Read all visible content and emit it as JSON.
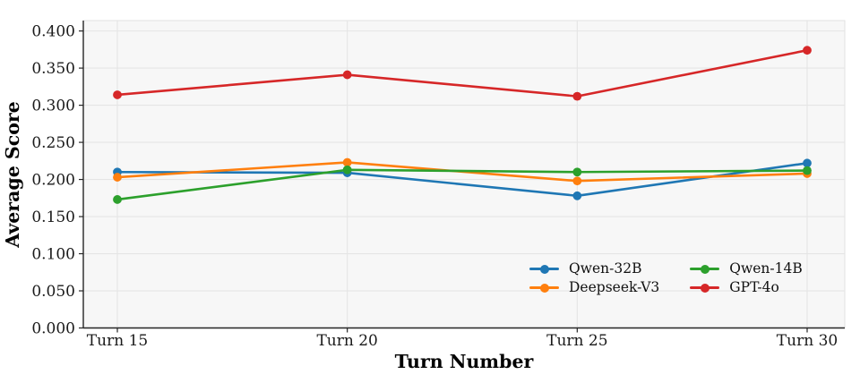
{
  "figure": {
    "background": "#ffffff",
    "plot_background": "#f7f7f7",
    "plot_border_color": "#e2e2e2",
    "grid_color": "#e5e5e5",
    "spine_color": "#262626",
    "tick_color": "#262626",
    "text_color": "#1a1a1a"
  },
  "chart_data": {
    "type": "line",
    "title": "",
    "xlabel": "Turn Number",
    "ylabel": "Average Score",
    "categories": [
      "Turn 15",
      "Turn 20",
      "Turn 25",
      "Turn 30"
    ],
    "ylim": [
      0,
      0.414
    ],
    "ytick_values": [
      0,
      0.05,
      0.1,
      0.15,
      0.2,
      0.25,
      0.3,
      0.35,
      0.4
    ],
    "ytick_labels": [
      "0.000",
      "0.050",
      "0.100",
      "0.150",
      "0.200",
      "0.250",
      "0.300",
      "0.350",
      "0.400"
    ],
    "grid": true,
    "legend": {
      "position": "lower-right-inside",
      "columns": 2,
      "order": "column-major"
    },
    "series": [
      {
        "name": "Qwen-32B",
        "color": "#1f77b4",
        "marker": "circle",
        "values": [
          0.21,
          0.209,
          0.178,
          0.222
        ]
      },
      {
        "name": "Deepseek-V3",
        "color": "#ff7f0e",
        "marker": "circle",
        "values": [
          0.203,
          0.223,
          0.198,
          0.208
        ]
      },
      {
        "name": "Qwen-14B",
        "color": "#2ca02c",
        "marker": "circle",
        "values": [
          0.173,
          0.213,
          0.21,
          0.212
        ]
      },
      {
        "name": "GPT-4o",
        "color": "#d62728",
        "marker": "circle",
        "values": [
          0.314,
          0.341,
          0.312,
          0.374
        ]
      }
    ]
  }
}
